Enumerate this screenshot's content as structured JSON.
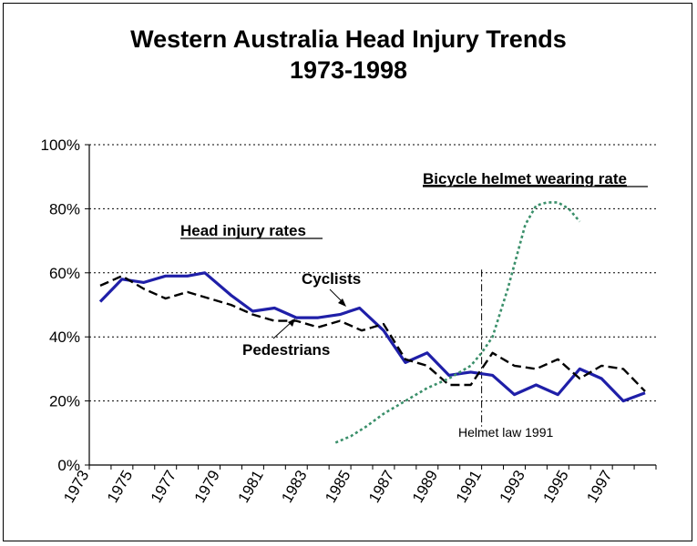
{
  "chart_data": {
    "type": "line",
    "title_line1": "Western Australia Head Injury Trends",
    "title_line2": "1973-1998",
    "xlim": [
      1973,
      1999
    ],
    "ylim": [
      0,
      100
    ],
    "y_tick_labels": [
      "0%",
      "20%",
      "40%",
      "60%",
      "80%",
      "100%"
    ],
    "y_tick_values": [
      0,
      20,
      40,
      60,
      80,
      100
    ],
    "x_tick_labels": [
      "1973",
      "1975",
      "1977",
      "1979",
      "1981",
      "1983",
      "1985",
      "1987",
      "1989",
      "1991",
      "1993",
      "1995",
      "1997"
    ],
    "grid": "horizontal dotted",
    "series": [
      {
        "name": "Cyclists",
        "color": "#1f1fa8",
        "style": "solid",
        "x": [
          1973.5,
          1974.5,
          1975.5,
          1976.5,
          1977.5,
          1978.3,
          1979.5,
          1980.5,
          1981.5,
          1982.5,
          1983.5,
          1984.5,
          1985.4,
          1986.5,
          1987.5,
          1988.5,
          1989.5,
          1990.5,
          1991.5,
          1992.5,
          1993.5,
          1994.5,
          1995.5,
          1996.5,
          1997.5,
          1998.5
        ],
        "values": [
          51,
          58,
          57,
          59,
          59,
          60,
          53,
          48,
          49,
          46,
          46,
          47,
          49,
          42,
          32,
          35,
          28,
          29,
          28,
          22,
          25,
          22,
          30,
          27,
          20,
          22.5
        ]
      },
      {
        "name": "Pedestrians",
        "color": "#000000",
        "style": "dashed",
        "x": [
          1973.5,
          1974.5,
          1975.5,
          1976.5,
          1977.5,
          1978.5,
          1979.5,
          1980.5,
          1981.5,
          1982.5,
          1983.5,
          1984.5,
          1985.5,
          1986.5,
          1987.5,
          1988.5,
          1989.5,
          1990.5,
          1991.5,
          1992.5,
          1993.5,
          1994.5,
          1995.5,
          1996.5,
          1997.5,
          1998.5
        ],
        "values": [
          56,
          59,
          55,
          52,
          54,
          52,
          50,
          47,
          45,
          45,
          43,
          45,
          42,
          44,
          33,
          31,
          25,
          25,
          35,
          31,
          30,
          33,
          27,
          31,
          30,
          23
        ]
      },
      {
        "name": "Bicycle helmet wearing rate",
        "color": "#3a8f6a",
        "style": "dotted",
        "x": [
          1984.3,
          1985,
          1985.7,
          1986.5,
          1987.5,
          1988.5,
          1989.5,
          1990.5,
          1991,
          1991.5,
          1992.2,
          1993,
          1993.5,
          1994,
          1994.5,
          1995,
          1995.5
        ],
        "values": [
          7,
          9,
          12,
          16,
          20,
          24,
          27,
          31,
          35,
          40,
          55,
          75,
          81,
          82,
          82,
          80,
          76
        ]
      }
    ],
    "annotations": {
      "cyclists": "Cyclists",
      "pedestrians": "Pedestrians",
      "head_injury_rates": "Head injury rates",
      "helmet_rate": "Bicycle helmet wearing rate",
      "helmet_law": "Helmet law 1991"
    },
    "helmet_law_year": 1991
  }
}
